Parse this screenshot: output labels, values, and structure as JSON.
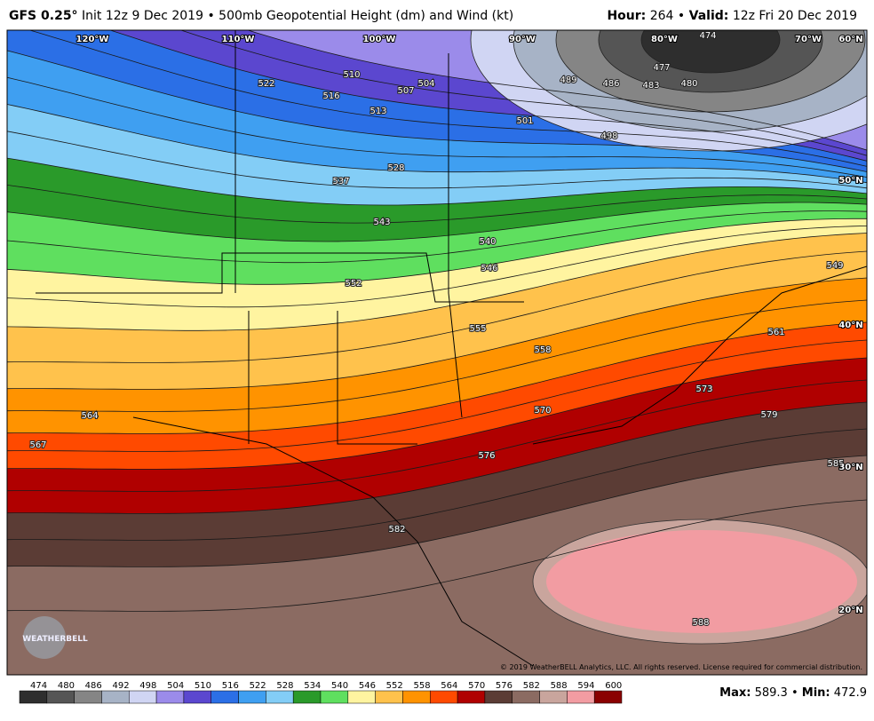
{
  "header": {
    "model": "GFS 0.25°",
    "init": "Init 12z 9 Dec 2019",
    "separator": "•",
    "field": "500mb Geopotential Height (dm) and Wind (kt)",
    "hour_label": "Hour:",
    "hour": "264",
    "valid_label": "Valid:",
    "valid": "12z Fri 20 Dec 2019"
  },
  "map": {
    "longitude_labels": [
      "120°W",
      "110°W",
      "100°W",
      "90°W",
      "80°W",
      "70°W",
      "60°N"
    ],
    "latitude_labels": [
      "50°N",
      "40°N",
      "30°N",
      "20°N"
    ],
    "contour_labels": [
      "474",
      "477",
      "480",
      "483",
      "486",
      "489",
      "498",
      "501",
      "504",
      "507",
      "510",
      "513",
      "516",
      "522",
      "528",
      "537",
      "540",
      "543",
      "546",
      "549",
      "552",
      "555",
      "558",
      "561",
      "564",
      "567",
      "570",
      "573",
      "576",
      "579",
      "582",
      "585",
      "588"
    ],
    "copyright": "© 2019 WeatherBELL Analytics, LLC. All rights reserved. License required for commercial distribution.",
    "logo": "WEATHERBELL"
  },
  "colorbar": {
    "levels": [
      474,
      480,
      486,
      492,
      498,
      504,
      510,
      516,
      522,
      528,
      534,
      540,
      546,
      552,
      558,
      564,
      570,
      576,
      582,
      588,
      594,
      600
    ],
    "colors": [
      "#2e2e2e",
      "#555555",
      "#858585",
      "#a7b3c6",
      "#d0d5f3",
      "#9b8bea",
      "#5b47cf",
      "#2b6fe6",
      "#3f9ff1",
      "#83cdf6",
      "#2a9a2a",
      "#5fdf5f",
      "#fff4a0",
      "#ffc24c",
      "#ff9300",
      "#ff4a00",
      "#b00000",
      "#5b3c35",
      "#8b6b62",
      "#c9a59d",
      "#f29ca2",
      "#8a0000"
    ]
  },
  "footer": {
    "max_label": "Max:",
    "max": "589.3",
    "separator": "•",
    "min_label": "Min:",
    "min": "472.9"
  }
}
